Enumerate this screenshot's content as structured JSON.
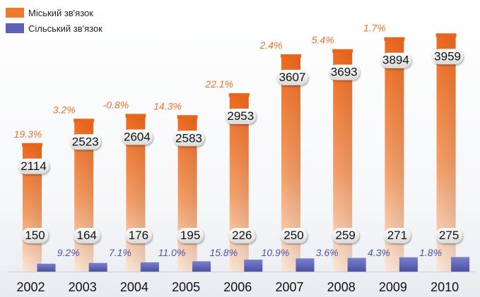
{
  "chart_data": {
    "type": "bar",
    "categories": [
      "2002",
      "2003",
      "2004",
      "2005",
      "2006",
      "2007",
      "2008",
      "2009",
      "2010"
    ],
    "series": [
      {
        "name": "Міський зв'язок",
        "color": "#f07a2e",
        "values": [
          2114,
          2523,
          2604,
          2583,
          2953,
          3607,
          3693,
          3894,
          3959
        ],
        "growth_labels": [
          "19.3%",
          "3.2%",
          "-0.8%",
          "14.3%",
          "22.1%",
          "2.4%",
          "5.4%",
          "1.7%",
          ""
        ]
      },
      {
        "name": "Сільський зв'язок",
        "color": "#5a62b5",
        "values": [
          150,
          164,
          176,
          195,
          226,
          250,
          259,
          271,
          275
        ],
        "growth_labels": [
          "",
          "9.2%",
          "7.1%",
          "11.0%",
          "15.8%",
          "10.9%",
          "3.6%",
          "4.3%",
          "1.8%"
        ]
      }
    ],
    "legend_position": "top-left"
  }
}
